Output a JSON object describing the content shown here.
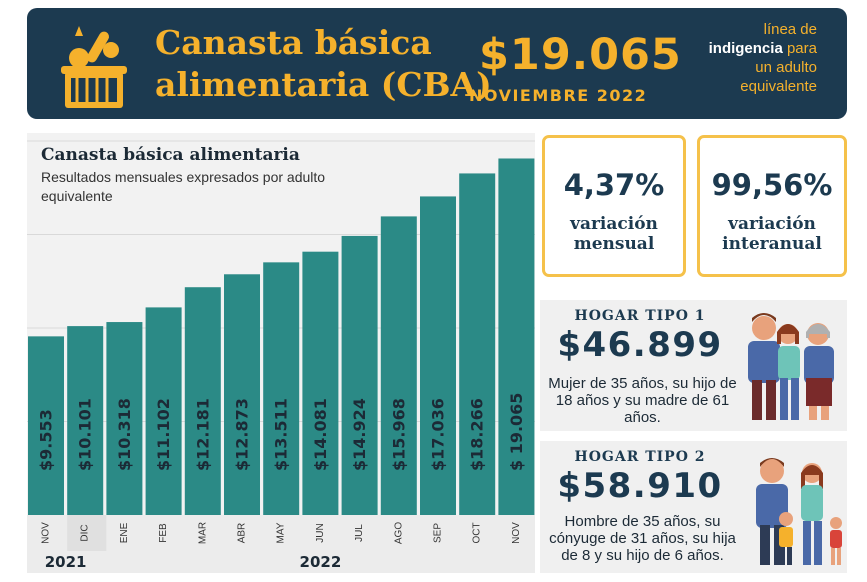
{
  "banner": {
    "title": "Canasta básica\nalimentaria (CBA)",
    "price": "$19.065",
    "date": "NOVIEMBRE 2022",
    "linea_line1": "línea de",
    "linea_bold": "indigencia",
    "linea_line2": "para",
    "linea_line3": "un adulto",
    "linea_line4": "equivalente"
  },
  "stats": {
    "mensual": {
      "value": "4,37%",
      "label": "variación\nmensual"
    },
    "interanual": {
      "value": "99,56%",
      "label": "variación\ninteranual"
    }
  },
  "hogar1": {
    "label": "HOGAR TIPO 1",
    "amount": "$46.899",
    "desc": "Mujer de 35 años, su hijo de 18 años y su madre de 61 años."
  },
  "hogar2": {
    "label": "HOGAR TIPO 2",
    "amount": "$58.910",
    "desc": "Hombre de 35 años, su cónyuge de 31 años, su hija de 8 y su hijo de 6 años."
  },
  "chart_data": {
    "type": "bar",
    "title": "Canasta básica alimentaria",
    "subtitle": "Resultados mensuales expresados por adulto equivalente",
    "categories": [
      "NOV",
      "DIC",
      "ENE",
      "FEB",
      "MAR",
      "ABR",
      "MAY",
      "JUN",
      "JUL",
      "AGO",
      "SEP",
      "OCT",
      "NOV"
    ],
    "values": [
      9553,
      10101,
      10318,
      11102,
      12181,
      12873,
      13511,
      14081,
      14924,
      15968,
      17036,
      18266,
      19065
    ],
    "value_labels": [
      "$9.553",
      "$10.101",
      "$10.318",
      "$11.102",
      "$12.181",
      "$12.873",
      "$13.511",
      "$14.081",
      "$14.924",
      "$15.968",
      "$17.036",
      "$18.266",
      "$ 19.065"
    ],
    "years": [
      {
        "label": "2021",
        "span": [
          0,
          1
        ]
      },
      {
        "label": "2022",
        "span": [
          2,
          12
        ]
      }
    ],
    "ylim": [
      0,
      20000
    ],
    "grid": true,
    "colors": {
      "bar": "#2b8a86",
      "grid": "#d9d9d9"
    }
  }
}
